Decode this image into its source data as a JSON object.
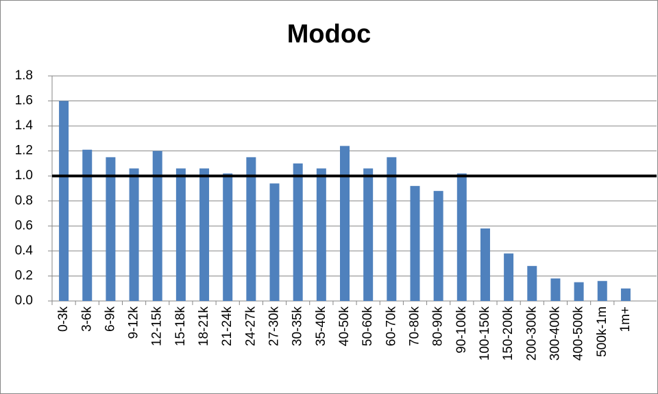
{
  "chart_data": {
    "type": "bar",
    "title": "Modoc",
    "categories": [
      "0-3k",
      "3-6k",
      "6-9k",
      "9-12k",
      "12-15k",
      "15-18k",
      "18-21k",
      "21-24k",
      "24-27k",
      "27-30k",
      "30-35k",
      "35-40k",
      "40-50k",
      "50-60k",
      "60-70k",
      "70-80k",
      "80-90k",
      "90-100k",
      "100-150k",
      "150-200k",
      "200-300k",
      "300-400k",
      "400-500k",
      "500k-1m",
      "1m+"
    ],
    "values": [
      1.6,
      1.21,
      1.15,
      1.06,
      1.2,
      1.06,
      1.06,
      1.02,
      1.15,
      0.94,
      1.1,
      1.06,
      1.24,
      1.06,
      1.15,
      0.92,
      0.88,
      1.02,
      0.58,
      0.38,
      0.28,
      0.18,
      0.15,
      0.16,
      0.1
    ],
    "color": "#4f81bd",
    "reference_line": 1,
    "ylim": [
      0,
      1.8
    ],
    "yticks": [
      {
        "value": 0,
        "label": "0.0"
      },
      0.2,
      0.4,
      0.6,
      0.8,
      {
        "value": 1,
        "label": "1.0"
      },
      1.2,
      1.4,
      1.6,
      1.8
    ],
    "grid": true
  }
}
